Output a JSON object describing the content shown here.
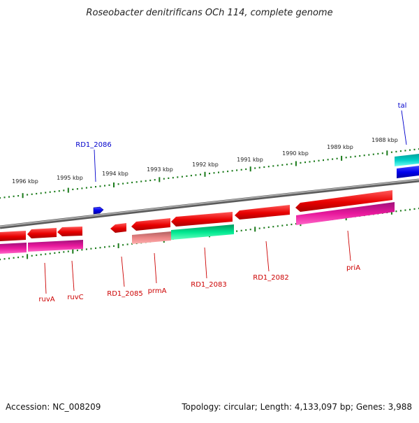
{
  "title": "Roseobacter denitrificans OCh 114, complete genome",
  "footer": {
    "accession": "Accession: NC_008209",
    "summary": "Topology: circular; Length: 4,133,097 bp; Genes: 3,988"
  },
  "colors": {
    "gene_label": "#cc0000",
    "blue_label": "#0000cc",
    "ruler_tick": "#1a7a1a",
    "backbone": "#808080",
    "red_gene": "#e80000",
    "magenta_cds": "#e8189c",
    "green_cds": "#00e890",
    "pink_cds": "#ea8484",
    "cyan_cds": "#00d0c8",
    "blue_gene": "#0000ee"
  },
  "ruler_labels": [
    {
      "text": "1996 kbp"
    },
    {
      "text": "1995 kbp"
    },
    {
      "text": "1994 kbp"
    },
    {
      "text": "1993 kbp"
    },
    {
      "text": "1992 kbp"
    },
    {
      "text": "1991 kbp"
    },
    {
      "text": "1990 kbp"
    },
    {
      "text": "1989 kbp"
    },
    {
      "text": "1988 kbp"
    }
  ],
  "gene_labels": [
    {
      "text": "RD1_2086"
    },
    {
      "text": "tal"
    },
    {
      "text": "ruvA"
    },
    {
      "text": "ruvC"
    },
    {
      "text": "RD1_2085"
    },
    {
      "text": "prmA"
    },
    {
      "text": "RD1_2083"
    },
    {
      "text": "RD1_2082"
    },
    {
      "text": "priA"
    }
  ]
}
